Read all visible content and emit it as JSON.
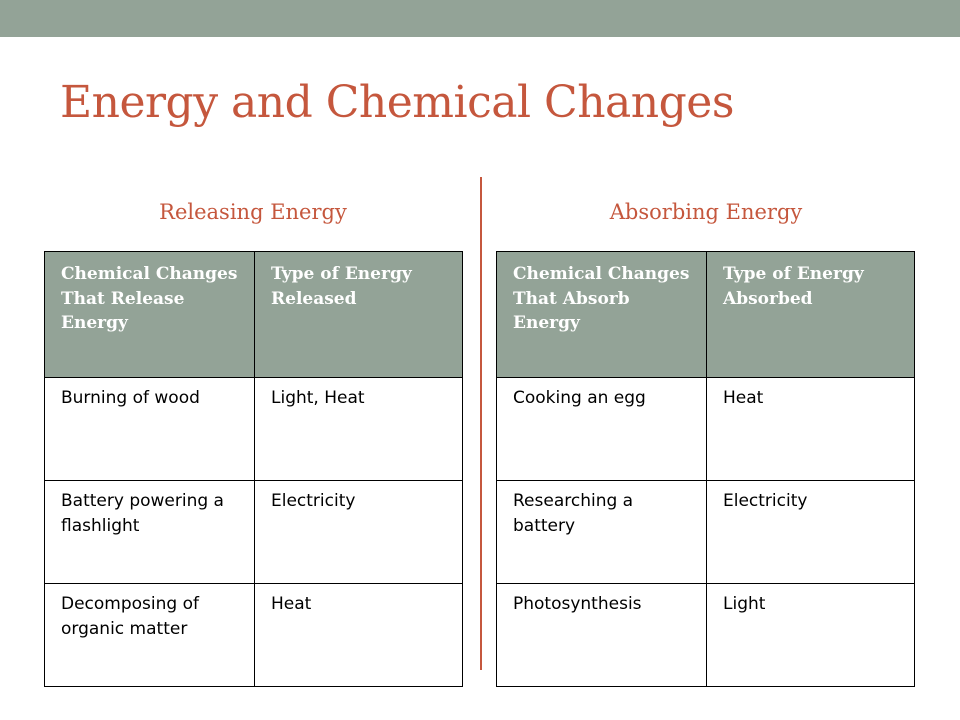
{
  "slide": {
    "title": "Energy and Chemical Changes",
    "colors": {
      "title": "#c5573d",
      "subhead": "#c5573d",
      "top_bar": "#93a397",
      "header_fill": "#93a397",
      "header_text": "#ffffff",
      "divider": "#c5573d"
    }
  },
  "left": {
    "subhead": "Releasing Energy",
    "table": {
      "headers": [
        "Chemical Changes That Release Energy",
        "Type of Energy Released"
      ],
      "rows": [
        [
          "Burning of wood",
          "Light, Heat"
        ],
        [
          "Battery powering a flashlight",
          "Electricity"
        ],
        [
          "Decomposing of organic matter",
          "Heat"
        ]
      ]
    }
  },
  "right": {
    "subhead": "Absorbing Energy",
    "table": {
      "headers": [
        "Chemical Changes That Absorb Energy",
        "Type of Energy Absorbed"
      ],
      "rows": [
        [
          "Cooking an egg",
          "Heat"
        ],
        [
          "Researching a battery",
          "Electricity"
        ],
        [
          "Photosynthesis",
          "Light"
        ]
      ]
    }
  }
}
